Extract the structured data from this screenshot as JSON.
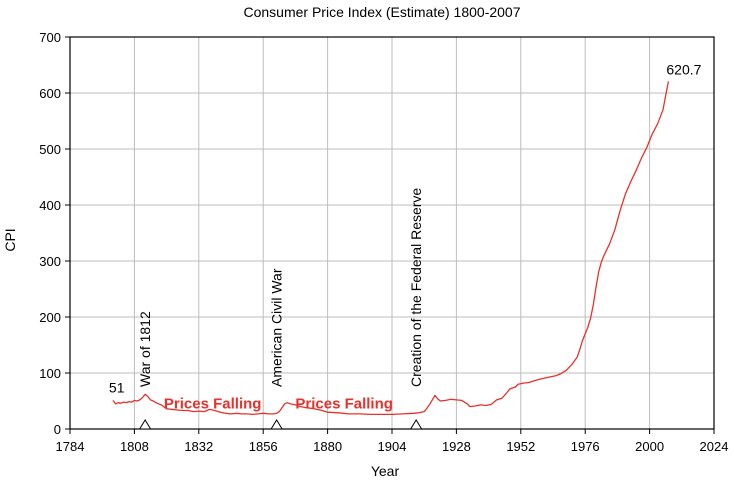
{
  "chart_data": {
    "type": "line",
    "title": "Consumer Price Index (Estimate) 1800-2007",
    "xlabel": "Year",
    "ylabel": "CPI",
    "xlim": [
      1784,
      2024
    ],
    "ylim": [
      0,
      700
    ],
    "x_ticks": [
      "1784",
      "1808",
      "1832",
      "1856",
      "1880",
      "1904",
      "1928",
      "1952",
      "1976",
      "2000",
      "2024"
    ],
    "y_ticks": [
      "0",
      "100",
      "200",
      "300",
      "400",
      "500",
      "600",
      "700"
    ],
    "series": [
      {
        "name": "CPI",
        "color": "#e8312a",
        "x": [
          1800,
          1801,
          1802,
          1803,
          1804,
          1805,
          1806,
          1807,
          1808,
          1809,
          1810,
          1811,
          1812,
          1813,
          1814,
          1815,
          1816,
          1817,
          1818,
          1820,
          1822,
          1824,
          1826,
          1828,
          1830,
          1832,
          1834,
          1836,
          1838,
          1840,
          1842,
          1844,
          1846,
          1848,
          1850,
          1852,
          1854,
          1856,
          1858,
          1860,
          1861,
          1862,
          1863,
          1864,
          1865,
          1866,
          1868,
          1870,
          1872,
          1874,
          1876,
          1878,
          1880,
          1884,
          1888,
          1892,
          1896,
          1900,
          1904,
          1908,
          1912,
          1914,
          1916,
          1917,
          1918,
          1919,
          1920,
          1921,
          1922,
          1924,
          1926,
          1928,
          1930,
          1932,
          1933,
          1935,
          1937,
          1939,
          1941,
          1943,
          1945,
          1947,
          1948,
          1950,
          1951,
          1953,
          1955,
          1957,
          1959,
          1961,
          1963,
          1965,
          1967,
          1969,
          1971,
          1973,
          1974,
          1975,
          1976,
          1977,
          1978,
          1979,
          1980,
          1981,
          1982,
          1983,
          1985,
          1987,
          1989,
          1991,
          1993,
          1995,
          1997,
          1999,
          2001,
          2003,
          2005,
          2007
        ],
        "values": [
          51,
          45,
          47,
          46,
          48,
          47,
          49,
          48,
          51,
          50,
          52,
          56,
          62,
          58,
          52,
          50,
          47,
          45,
          43,
          36,
          35,
          34,
          33,
          33,
          31,
          32,
          31,
          35,
          33,
          30,
          28,
          27,
          28,
          27,
          27,
          26,
          27,
          28,
          27,
          27,
          28,
          31,
          38,
          45,
          47,
          45,
          43,
          40,
          38,
          37,
          35,
          33,
          30,
          29,
          27,
          27,
          26,
          26,
          26,
          27,
          28,
          29,
          31,
          37,
          44,
          52,
          60,
          54,
          50,
          51,
          53,
          52,
          51,
          45,
          40,
          41,
          43,
          42,
          44,
          52,
          55,
          66,
          72,
          75,
          80,
          82,
          83,
          86,
          89,
          91,
          93,
          95,
          99,
          105,
          115,
          128,
          142,
          158,
          170,
          182,
          198,
          222,
          252,
          280,
          298,
          310,
          330,
          355,
          390,
          420,
          442,
          462,
          484,
          503,
          527,
          545,
          570,
          620.7
        ]
      }
    ],
    "value_labels": [
      {
        "text": "51",
        "x": 1800,
        "y": 51
      },
      {
        "text": "620.7",
        "x": 2007,
        "y": 620.7
      }
    ],
    "events": [
      {
        "label": "War of 1812",
        "year": 1812
      },
      {
        "label": "American Civil War",
        "year": 1861
      },
      {
        "label": "Creation of the Federal Reserve",
        "year": 1913
      }
    ],
    "periods": [
      {
        "label": "Prices Falling",
        "x_start": 1819,
        "y": 35
      },
      {
        "label": "Prices Falling",
        "x_start": 1868,
        "y": 35
      }
    ],
    "grid": true
  }
}
